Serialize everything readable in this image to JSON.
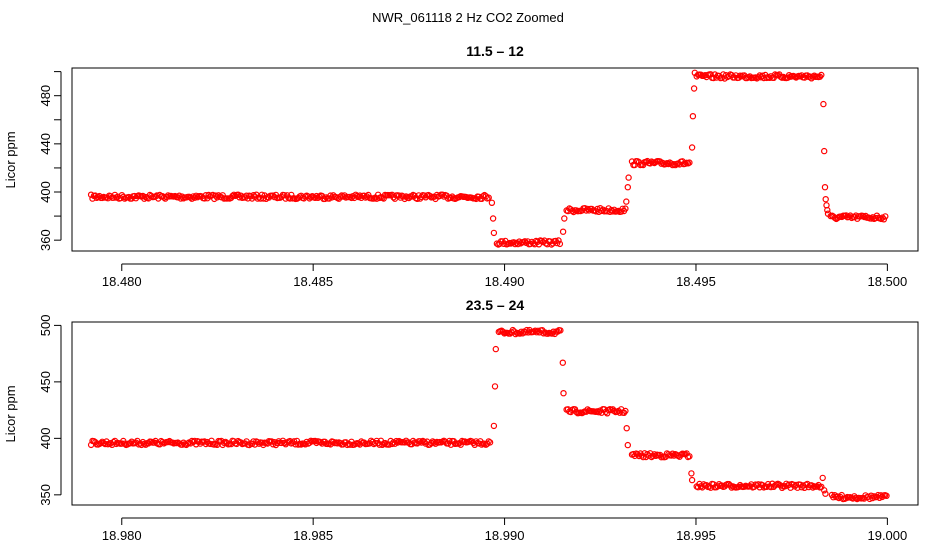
{
  "figure_title": "NWR_061118  2 Hz CO2 Zoomed",
  "chart_data": [
    {
      "type": "scatter",
      "title": "11.5 – 12",
      "xlabel": "",
      "ylabel": "Licor ppm",
      "xlim": [
        18.4787,
        18.5008
      ],
      "ylim": [
        351,
        503
      ],
      "x_ticks": [
        18.48,
        18.485,
        18.49,
        18.495,
        18.5
      ],
      "x_tick_labels": [
        "18.480",
        "18.485",
        "18.490",
        "18.495",
        "18.500"
      ],
      "y_ticks": [
        360,
        400,
        440,
        480
      ],
      "y_tick_labels": [
        "360",
        "400",
        "440",
        "480"
      ],
      "minor_y_ticks": [
        380,
        420,
        460,
        500
      ],
      "grid": false,
      "marker": "open-circle",
      "color": "#ff0000",
      "series": [
        {
          "segments": [
            {
              "x0": 18.4792,
              "x1": 18.48962,
              "y": 396
            },
            {
              "x0": 18.4898,
              "x1": 18.49148,
              "y": 358
            },
            {
              "x0": 18.49162,
              "x1": 18.49318,
              "y": 385
            },
            {
              "x0": 18.49333,
              "x1": 18.49485,
              "y": 424
            },
            {
              "x0": 18.49502,
              "x1": 18.49828,
              "y": 496
            },
            {
              "x0": 18.49852,
              "x1": 18.49998,
              "y": 379
            }
          ],
          "transitions": [
            {
              "x": 18.48967,
              "y": 391
            },
            {
              "x": 18.4897,
              "y": 378
            },
            {
              "x": 18.48972,
              "y": 366
            },
            {
              "x": 18.49153,
              "y": 367
            },
            {
              "x": 18.49156,
              "y": 378
            },
            {
              "x": 18.49318,
              "y": 392
            },
            {
              "x": 18.49322,
              "y": 404
            },
            {
              "x": 18.49324,
              "y": 412
            },
            {
              "x": 18.4949,
              "y": 437
            },
            {
              "x": 18.49492,
              "y": 463
            },
            {
              "x": 18.49495,
              "y": 486
            },
            {
              "x": 18.49497,
              "y": 499
            },
            {
              "x": 18.49833,
              "y": 473
            },
            {
              "x": 18.49835,
              "y": 434
            },
            {
              "x": 18.49837,
              "y": 404
            },
            {
              "x": 18.49839,
              "y": 394
            },
            {
              "x": 18.49841,
              "y": 389
            },
            {
              "x": 18.49843,
              "y": 385
            },
            {
              "x": 18.49845,
              "y": 382
            }
          ]
        }
      ]
    },
    {
      "type": "scatter",
      "title": "23.5 – 24",
      "xlabel": "",
      "ylabel": "Licor ppm",
      "xlim": [
        18.9787,
        19.0008
      ],
      "ylim": [
        341,
        503
      ],
      "x_ticks": [
        18.98,
        18.985,
        18.99,
        18.995,
        19.0
      ],
      "x_tick_labels": [
        "18.980",
        "18.985",
        "18.990",
        "18.995",
        "19.000"
      ],
      "y_ticks": [
        350,
        400,
        450,
        500
      ],
      "y_tick_labels": [
        "350",
        "400",
        "450",
        "500"
      ],
      "minor_y_ticks": [],
      "grid": false,
      "marker": "open-circle",
      "color": "#ff0000",
      "series": [
        {
          "segments": [
            {
              "x0": 18.9792,
              "x1": 18.98965,
              "y": 396
            },
            {
              "x0": 18.98985,
              "x1": 18.99148,
              "y": 494
            },
            {
              "x0": 18.99162,
              "x1": 18.99318,
              "y": 424
            },
            {
              "x0": 18.99333,
              "x1": 18.99485,
              "y": 385
            },
            {
              "x0": 18.99502,
              "x1": 18.99828,
              "y": 358
            },
            {
              "x0": 18.99855,
              "x1": 18.99998,
              "y": 348
            }
          ],
          "transitions": [
            {
              "x": 18.98972,
              "y": 411
            },
            {
              "x": 18.98975,
              "y": 446
            },
            {
              "x": 18.98977,
              "y": 479
            },
            {
              "x": 18.99152,
              "y": 467
            },
            {
              "x": 18.99154,
              "y": 440
            },
            {
              "x": 18.99319,
              "y": 409
            },
            {
              "x": 18.99322,
              "y": 394
            },
            {
              "x": 18.99488,
              "y": 369
            },
            {
              "x": 18.9949,
              "y": 363
            },
            {
              "x": 18.99831,
              "y": 365
            },
            {
              "x": 18.99835,
              "y": 354
            },
            {
              "x": 18.99838,
              "y": 351
            }
          ]
        }
      ]
    }
  ]
}
